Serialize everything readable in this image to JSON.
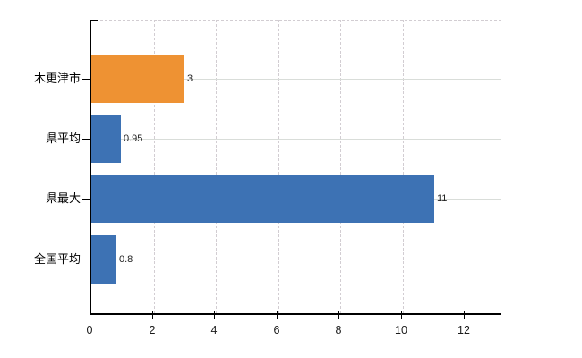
{
  "chart_data": {
    "type": "bar",
    "orientation": "horizontal",
    "title": "",
    "categories": [
      "木更津市",
      "県平均",
      "県最大",
      "全国平均"
    ],
    "values": [
      3,
      0.95,
      11,
      0.8
    ],
    "value_labels": [
      "3",
      "0.95",
      "11",
      "0.8"
    ],
    "bar_colors": [
      "#ee9233",
      "#3d72b4",
      "#3d72b4",
      "#3d72b4"
    ],
    "highlight_color": "#ee9233",
    "base_color": "#3d72b4",
    "x_ticks": [
      0,
      2,
      4,
      6,
      8,
      10,
      12
    ],
    "x_tick_labels": [
      "0",
      "2",
      "4",
      "6",
      "8",
      "10",
      "12"
    ],
    "xlim": [
      0,
      13.22
    ],
    "xlabel": "",
    "ylabel": "",
    "legend_position": "none",
    "grid": {
      "vertical": "dashed",
      "horizontal": "solid",
      "color": "#d9d9d9"
    },
    "axis_color": "#000000",
    "background_color": "#ffffff"
  }
}
